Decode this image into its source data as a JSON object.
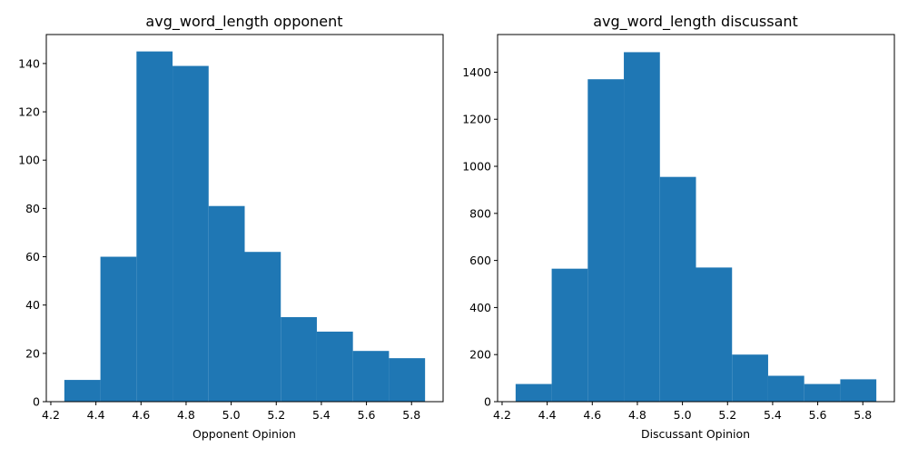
{
  "chart_data": [
    {
      "type": "bar",
      "title": "avg_word_length opponent",
      "xlabel": "Opponent Opinion",
      "ylabel": "",
      "bin_edges": [
        4.26,
        4.42,
        4.58,
        4.74,
        4.9,
        5.06,
        5.22,
        5.38,
        5.54,
        5.7,
        5.86
      ],
      "values": [
        9,
        60,
        145,
        139,
        81,
        62,
        35,
        29,
        21,
        18
      ],
      "xlim": [
        4.18,
        5.94
      ],
      "ylim": [
        0,
        152
      ],
      "xticks": [
        4.2,
        4.4,
        4.6,
        4.8,
        5.0,
        5.2,
        5.4,
        5.6,
        5.8
      ],
      "xtick_labels": [
        "4.2",
        "4.4",
        "4.6",
        "4.8",
        "5.0",
        "5.2",
        "5.4",
        "5.6",
        "5.8"
      ],
      "yticks": [
        0,
        20,
        40,
        60,
        80,
        100,
        120,
        140
      ],
      "ytick_labels": [
        "0",
        "20",
        "40",
        "60",
        "80",
        "100",
        "120",
        "140"
      ],
      "color": "#1f77b4",
      "grid": false
    },
    {
      "type": "bar",
      "title": "avg_word_length discussant",
      "xlabel": "Discussant Opinion",
      "ylabel": "",
      "bin_edges": [
        4.26,
        4.42,
        4.58,
        4.74,
        4.9,
        5.06,
        5.22,
        5.38,
        5.54,
        5.7,
        5.86
      ],
      "values": [
        75,
        565,
        1370,
        1485,
        955,
        570,
        200,
        110,
        75,
        95
      ],
      "xlim": [
        4.18,
        5.94
      ],
      "ylim": [
        0,
        1560
      ],
      "xticks": [
        4.2,
        4.4,
        4.6,
        4.8,
        5.0,
        5.2,
        5.4,
        5.6,
        5.8
      ],
      "xtick_labels": [
        "4.2",
        "4.4",
        "4.6",
        "4.8",
        "5.0",
        "5.2",
        "5.4",
        "5.6",
        "5.8"
      ],
      "yticks": [
        0,
        200,
        400,
        600,
        800,
        1000,
        1200,
        1400
      ],
      "ytick_labels": [
        "0",
        "200",
        "400",
        "600",
        "800",
        "1000",
        "1200",
        "1400"
      ],
      "color": "#1f77b4",
      "grid": false
    }
  ]
}
